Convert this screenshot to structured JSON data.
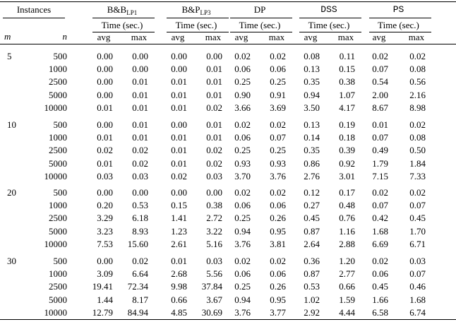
{
  "header": {
    "instances": "Instances",
    "m_label": "m",
    "n_label": "n",
    "methods": [
      {
        "name": "B&B",
        "sub": "LP1",
        "unit": "Time (sec.)",
        "avg": "avg",
        "max": "max"
      },
      {
        "name": "B&P",
        "sub": "LP3",
        "unit": "Time (sec.)",
        "avg": "avg",
        "max": "max"
      },
      {
        "name": "DP",
        "unit": "Time (sec.)",
        "avg": "avg",
        "max": "max"
      },
      {
        "name": "DSS",
        "unit": "Time (sec.)",
        "avg": "avg",
        "max": "max"
      },
      {
        "name": "PS",
        "unit": "Time (sec.)",
        "avg": "avg",
        "max": "max"
      }
    ]
  },
  "table": {
    "groups": [
      {
        "m": "5",
        "rows": [
          [
            "500",
            "0.00",
            "0.00",
            "0.00",
            "0.00",
            "0.02",
            "0.02",
            "0.08",
            "0.11",
            "0.02",
            "0.02"
          ],
          [
            "1000",
            "0.00",
            "0.00",
            "0.00",
            "0.01",
            "0.06",
            "0.06",
            "0.13",
            "0.15",
            "0.07",
            "0.08"
          ],
          [
            "2500",
            "0.00",
            "0.01",
            "0.01",
            "0.01",
            "0.25",
            "0.25",
            "0.35",
            "0.38",
            "0.54",
            "0.56"
          ],
          [
            "5000",
            "0.00",
            "0.01",
            "0.01",
            "0.01",
            "0.90",
            "0.91",
            "0.94",
            "1.07",
            "2.00",
            "2.16"
          ],
          [
            "10000",
            "0.01",
            "0.01",
            "0.01",
            "0.02",
            "3.66",
            "3.69",
            "3.50",
            "4.17",
            "8.67",
            "8.98"
          ]
        ]
      },
      {
        "m": "10",
        "rows": [
          [
            "500",
            "0.00",
            "0.01",
            "0.00",
            "0.01",
            "0.02",
            "0.02",
            "0.13",
            "0.19",
            "0.01",
            "0.02"
          ],
          [
            "1000",
            "0.01",
            "0.01",
            "0.01",
            "0.01",
            "0.06",
            "0.07",
            "0.14",
            "0.18",
            "0.07",
            "0.08"
          ],
          [
            "2500",
            "0.02",
            "0.02",
            "0.01",
            "0.02",
            "0.25",
            "0.25",
            "0.35",
            "0.39",
            "0.49",
            "0.50"
          ],
          [
            "5000",
            "0.01",
            "0.02",
            "0.01",
            "0.02",
            "0.93",
            "0.93",
            "0.86",
            "0.92",
            "1.79",
            "1.84"
          ],
          [
            "10000",
            "0.03",
            "0.03",
            "0.02",
            "0.03",
            "3.70",
            "3.76",
            "2.76",
            "3.01",
            "7.15",
            "7.33"
          ]
        ]
      },
      {
        "m": "20",
        "rows": [
          [
            "500",
            "0.00",
            "0.00",
            "0.00",
            "0.00",
            "0.02",
            "0.02",
            "0.12",
            "0.17",
            "0.02",
            "0.02"
          ],
          [
            "1000",
            "0.20",
            "0.53",
            "0.15",
            "0.38",
            "0.06",
            "0.06",
            "0.27",
            "0.48",
            "0.07",
            "0.07"
          ],
          [
            "2500",
            "3.29",
            "6.18",
            "1.41",
            "2.72",
            "0.25",
            "0.26",
            "0.45",
            "0.76",
            "0.42",
            "0.45"
          ],
          [
            "5000",
            "3.23",
            "8.93",
            "1.23",
            "3.22",
            "0.94",
            "0.95",
            "0.87",
            "1.16",
            "1.68",
            "1.70"
          ],
          [
            "10000",
            "7.53",
            "15.60",
            "2.61",
            "5.16",
            "3.76",
            "3.81",
            "2.64",
            "2.88",
            "6.69",
            "6.71"
          ]
        ]
      },
      {
        "m": "30",
        "rows": [
          [
            "500",
            "0.00",
            "0.02",
            "0.01",
            "0.03",
            "0.02",
            "0.02",
            "0.36",
            "1.20",
            "0.02",
            "0.03"
          ],
          [
            "1000",
            "3.09",
            "6.64",
            "2.68",
            "5.56",
            "0.06",
            "0.06",
            "0.87",
            "2.77",
            "0.06",
            "0.07"
          ],
          [
            "2500",
            "19.41",
            "72.34",
            "9.98",
            "37.84",
            "0.25",
            "0.26",
            "0.53",
            "0.66",
            "0.45",
            "0.46"
          ],
          [
            "5000",
            "1.44",
            "8.17",
            "0.66",
            "3.67",
            "0.94",
            "0.95",
            "1.02",
            "1.59",
            "1.66",
            "1.68"
          ],
          [
            "10000",
            "12.79",
            "84.94",
            "4.85",
            "30.69",
            "3.76",
            "3.77",
            "2.92",
            "4.44",
            "6.58",
            "6.74"
          ]
        ]
      }
    ]
  }
}
